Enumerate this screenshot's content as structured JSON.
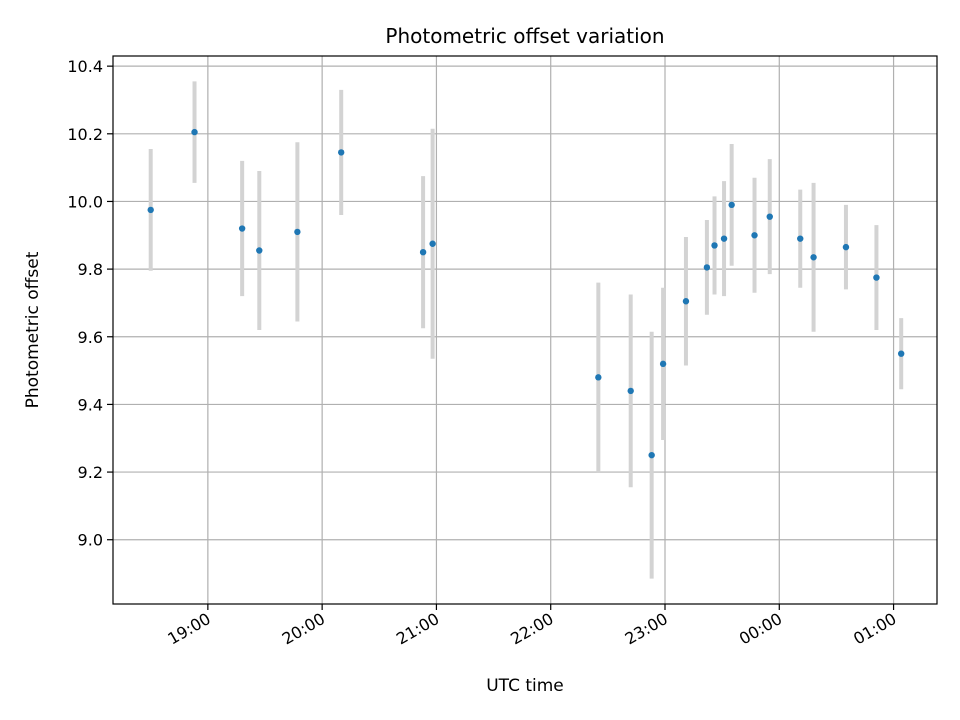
{
  "chart_data": {
    "type": "scatter",
    "title": "Photometric offset variation",
    "xlabel": "UTC time",
    "ylabel": "Photometric offset",
    "x_tick_labels": [
      "19:00",
      "20:00",
      "21:00",
      "22:00",
      "23:00",
      "00:00",
      "01:00"
    ],
    "x_tick_hours": [
      19,
      20,
      21,
      22,
      23,
      24,
      25
    ],
    "xlim_hours": [
      18.17,
      25.38
    ],
    "ylim": [
      8.81,
      10.43
    ],
    "y_ticks": [
      9.0,
      9.2,
      9.4,
      9.6,
      9.8,
      10.0,
      10.2,
      10.4
    ],
    "y_tick_labels": [
      "9.0",
      "9.2",
      "9.4",
      "9.6",
      "9.8",
      "10.0",
      "10.2",
      "10.4"
    ],
    "grid": true,
    "colors": {
      "points": "#1f77b4",
      "error_bars": "#d3d3d3",
      "grid": "#b0b0b0"
    },
    "series": [
      {
        "points": [
          {
            "time": "18:30",
            "y": 9.975,
            "err": 0.18
          },
          {
            "time": "18:53",
            "y": 10.205,
            "err": 0.15
          },
          {
            "time": "19:18",
            "y": 9.92,
            "err": 0.2
          },
          {
            "time": "19:27",
            "y": 9.855,
            "err": 0.235
          },
          {
            "time": "19:47",
            "y": 9.91,
            "err": 0.265
          },
          {
            "time": "20:10",
            "y": 10.145,
            "err": 0.185
          },
          {
            "time": "20:53",
            "y": 9.85,
            "err": 0.225
          },
          {
            "time": "20:58",
            "y": 9.875,
            "err": 0.34
          },
          {
            "time": "22:25",
            "y": 9.48,
            "err": 0.28
          },
          {
            "time": "22:42",
            "y": 9.44,
            "err": 0.285
          },
          {
            "time": "22:53",
            "y": 9.25,
            "err": 0.365
          },
          {
            "time": "22:59",
            "y": 9.52,
            "err": 0.225
          },
          {
            "time": "23:11",
            "y": 9.705,
            "err": 0.19
          },
          {
            "time": "23:22",
            "y": 9.805,
            "err": 0.14
          },
          {
            "time": "23:26",
            "y": 9.87,
            "err": 0.145
          },
          {
            "time": "23:31",
            "y": 9.89,
            "err": 0.17
          },
          {
            "time": "23:35",
            "y": 9.99,
            "err": 0.18
          },
          {
            "time": "23:47",
            "y": 9.9,
            "err": 0.17
          },
          {
            "time": "23:55",
            "y": 9.955,
            "err": 0.17
          },
          {
            "time": "00:11",
            "y": 9.89,
            "err": 0.145
          },
          {
            "time": "00:18",
            "y": 9.835,
            "err": 0.22
          },
          {
            "time": "00:35",
            "y": 9.865,
            "err": 0.125
          },
          {
            "time": "00:51",
            "y": 9.775,
            "err": 0.155
          },
          {
            "time": "01:04",
            "y": 9.55,
            "err": 0.105
          }
        ]
      }
    ]
  }
}
